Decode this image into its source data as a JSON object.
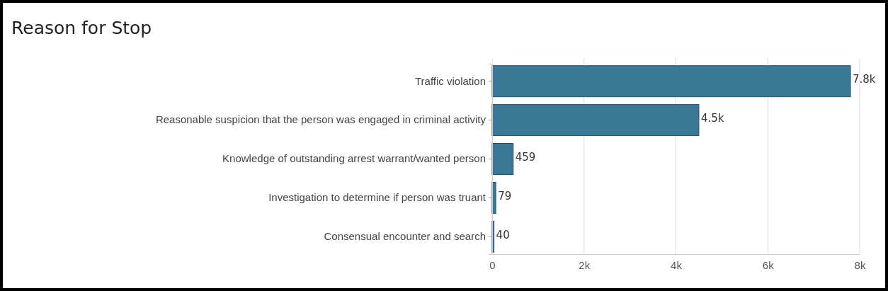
{
  "chart_data": {
    "type": "bar",
    "title": "Reason for Stop",
    "orientation": "horizontal",
    "categories": [
      "Traffic violation",
      "Reasonable suspicion that the person was engaged in criminal activity",
      "Knowledge of outstanding arrest warrant/wanted person",
      "Investigation to determine if person was truant",
      "Consensual encounter and search"
    ],
    "values": [
      7800,
      4500,
      459,
      79,
      40
    ],
    "value_labels": [
      "7.8k",
      "4.5k",
      "459",
      "79",
      "40"
    ],
    "color": "#3b7896",
    "xlim": [
      0,
      8000
    ],
    "xticks": [
      {
        "value": 0,
        "label": "0"
      },
      {
        "value": 2000,
        "label": "2k"
      },
      {
        "value": 4000,
        "label": "4k"
      },
      {
        "value": 6000,
        "label": "6k"
      },
      {
        "value": 8000,
        "label": "8k"
      }
    ],
    "grid": "x"
  }
}
